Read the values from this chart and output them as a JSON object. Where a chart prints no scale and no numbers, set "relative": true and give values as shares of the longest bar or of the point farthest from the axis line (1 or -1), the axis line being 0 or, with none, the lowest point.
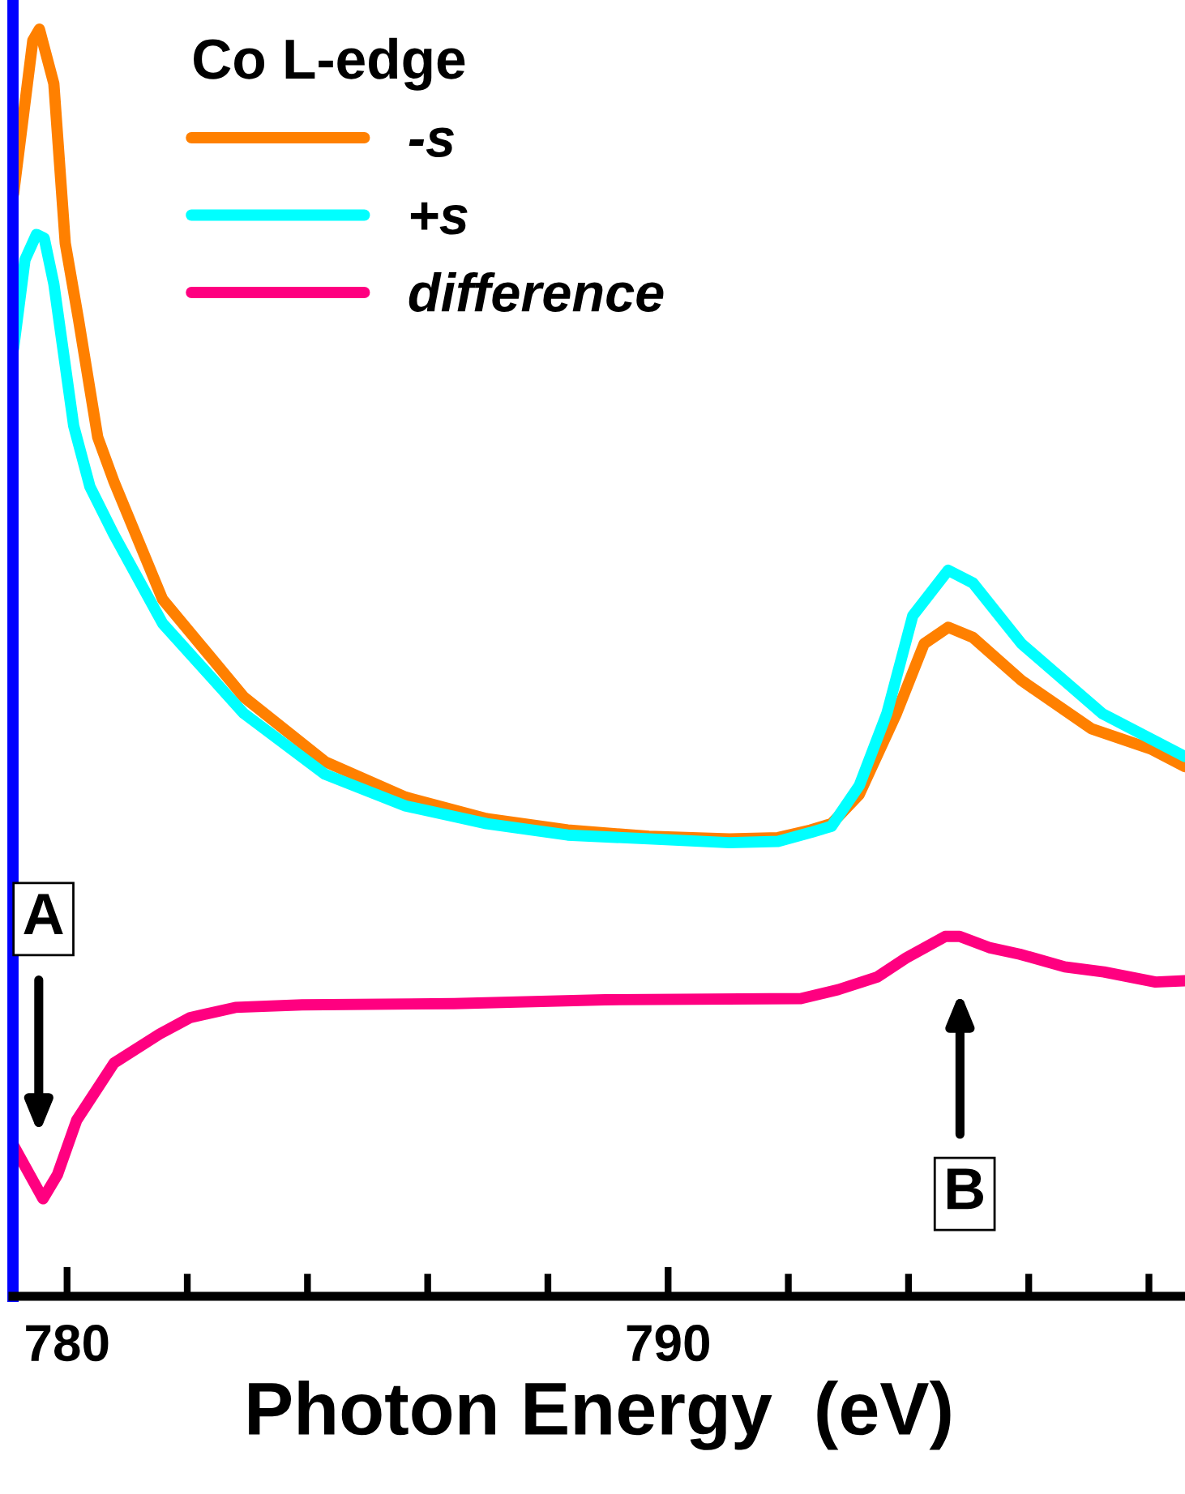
{
  "chart_data": {
    "type": "line",
    "relative": true,
    "xlabel": "Photon Energy  (eV)",
    "legend_title": "Co L-edge",
    "legend": "top left",
    "grid": false,
    "tick_labels": "x",
    "marker": "none",
    "line_style": "solid",
    "xlim": [
      779.1,
      798.6
    ],
    "xticks": [
      780,
      {
        "value": 782,
        "label": null
      },
      {
        "value": 784,
        "label": null
      },
      {
        "value": 786,
        "label": null
      },
      {
        "value": 788,
        "label": null
      },
      790,
      {
        "value": 792,
        "label": null
      },
      {
        "value": 794,
        "label": null
      },
      {
        "value": 796,
        "label": null
      },
      {
        "value": 798,
        "label": null
      }
    ],
    "series": [
      {
        "name": "-s",
        "color": "#ff8000",
        "x": [
          779.11,
          779.43,
          779.54,
          779.78,
          779.97,
          780.19,
          780.51,
          780.78,
          781.59,
          782.94,
          784.29,
          785.63,
          786.98,
          788.33,
          789.68,
          791.02,
          791.83,
          792.37,
          792.72,
          793.18,
          793.8,
          794.26,
          794.66,
          795.07,
          795.88,
          797.04,
          798.03,
          798.6
        ],
        "values": [
          0.87,
          0.991,
          1.0,
          0.957,
          0.831,
          0.771,
          0.678,
          0.643,
          0.55,
          0.473,
          0.422,
          0.394,
          0.377,
          0.368,
          0.363,
          0.361,
          0.362,
          0.368,
          0.373,
          0.396,
          0.46,
          0.515,
          0.528,
          0.52,
          0.486,
          0.448,
          0.432,
          0.418
        ]
      },
      {
        "name": "+s",
        "color": "#00ffff",
        "x": [
          779.11,
          779.3,
          779.49,
          779.62,
          779.78,
          780.11,
          780.38,
          780.78,
          781.59,
          782.94,
          784.29,
          785.63,
          786.98,
          788.33,
          789.68,
          791.02,
          791.83,
          792.37,
          792.72,
          793.18,
          793.64,
          794.07,
          794.66,
          795.07,
          795.88,
          797.22,
          798.6
        ],
        "values": [
          0.748,
          0.818,
          0.838,
          0.835,
          0.799,
          0.687,
          0.639,
          0.601,
          0.531,
          0.46,
          0.412,
          0.387,
          0.373,
          0.364,
          0.361,
          0.358,
          0.359,
          0.366,
          0.371,
          0.403,
          0.46,
          0.537,
          0.573,
          0.563,
          0.515,
          0.46,
          0.426
        ]
      },
      {
        "name": "difference",
        "color": "#ff0080",
        "x": [
          779.11,
          779.6,
          779.84,
          780.16,
          780.78,
          781.54,
          782.05,
          782.8,
          783.91,
          786.44,
          788.95,
          792.21,
          792.83,
          793.48,
          793.96,
          794.61,
          794.85,
          795.36,
          795.85,
          796.6,
          797.25,
          798.11,
          798.6
        ],
        "values": [
          0.119,
          0.077,
          0.096,
          0.139,
          0.184,
          0.207,
          0.22,
          0.228,
          0.23,
          0.231,
          0.234,
          0.235,
          0.242,
          0.252,
          0.267,
          0.284,
          0.284,
          0.275,
          0.27,
          0.26,
          0.256,
          0.248,
          0.249
        ]
      }
    ],
    "annotations": [
      "A",
      "B"
    ]
  }
}
